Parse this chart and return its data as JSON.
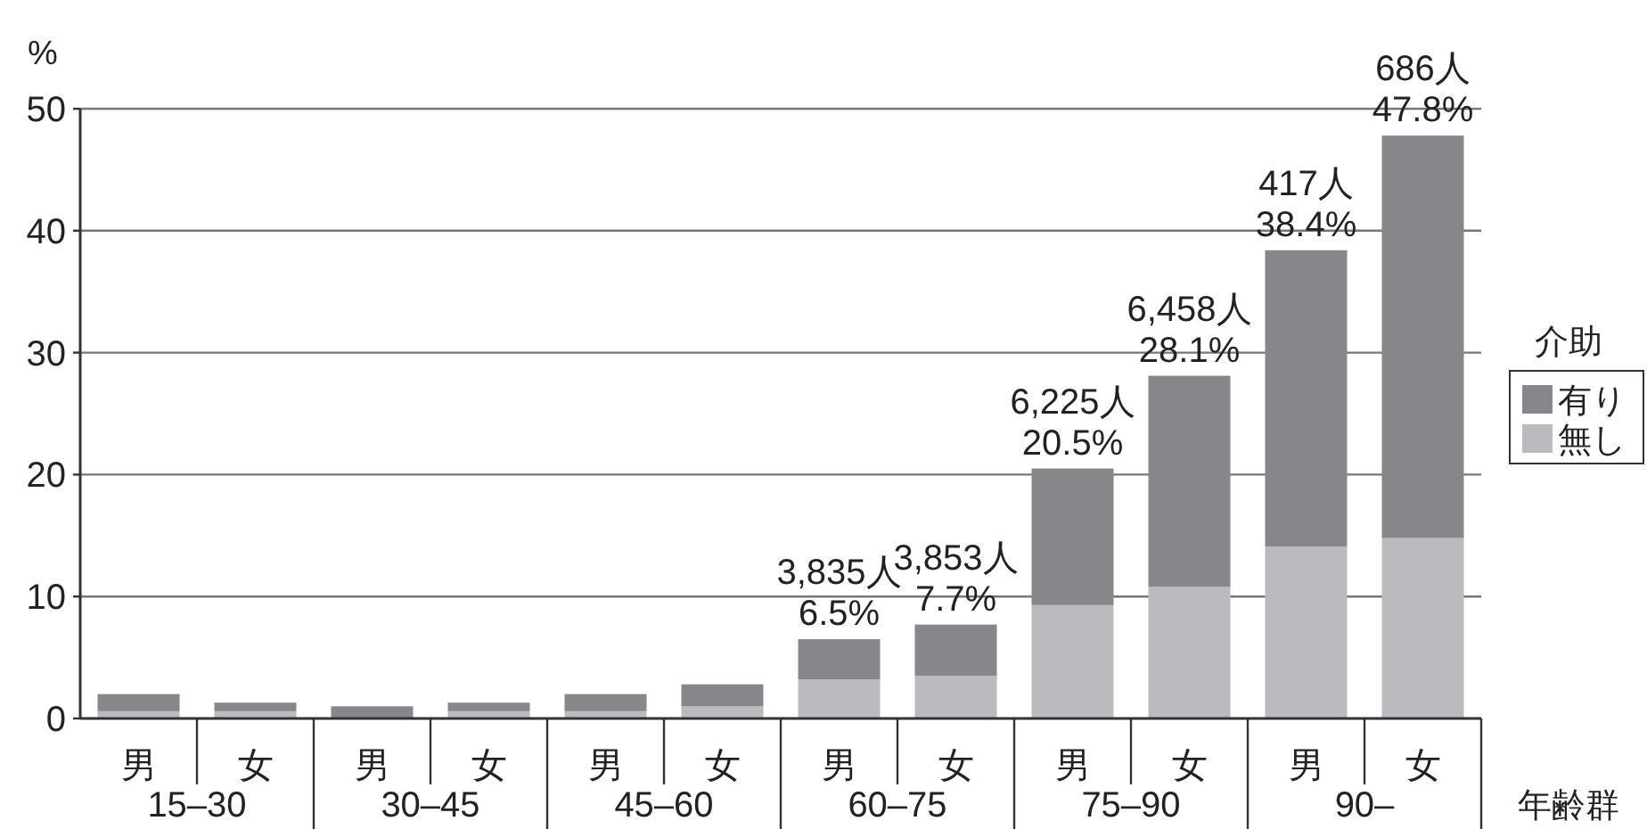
{
  "chart_data": {
    "type": "bar",
    "stacked": true,
    "categories": [
      "男",
      "女",
      "男",
      "女",
      "男",
      "女",
      "男",
      "女",
      "男",
      "女",
      "男",
      "女"
    ],
    "series": [
      {
        "name": "無し",
        "color": "#bbbbbf",
        "values": [
          0.6,
          0.6,
          0,
          0.6,
          0.6,
          1.0,
          3.2,
          3.5,
          9.3,
          10.8,
          14.1,
          14.8
        ]
      },
      {
        "name": "有り",
        "color": "#87868b",
        "values": [
          1.4,
          0.7,
          1.0,
          0.7,
          1.4,
          1.8,
          3.3,
          4.2,
          11.2,
          17.3,
          24.3,
          33.0
        ]
      }
    ],
    "totals": [
      null,
      null,
      null,
      null,
      null,
      null,
      "3,835人\n6.5%",
      "3,853人\n7.7%",
      "6,225人\n20.5%",
      "6,458人\n28.1%",
      "417人\n38.4%",
      "686人\n47.8%"
    ],
    "annotations": [
      "15–30",
      "30–45",
      "45–60",
      "60–75",
      "75–90",
      "90–"
    ],
    "ylim": [
      0,
      50
    ],
    "yticks": [
      0,
      10,
      20,
      30,
      40,
      50
    ],
    "ylabel": "%",
    "xlabel": "年齢群",
    "legend_title": "介助",
    "legend": "right",
    "grid": "y"
  }
}
